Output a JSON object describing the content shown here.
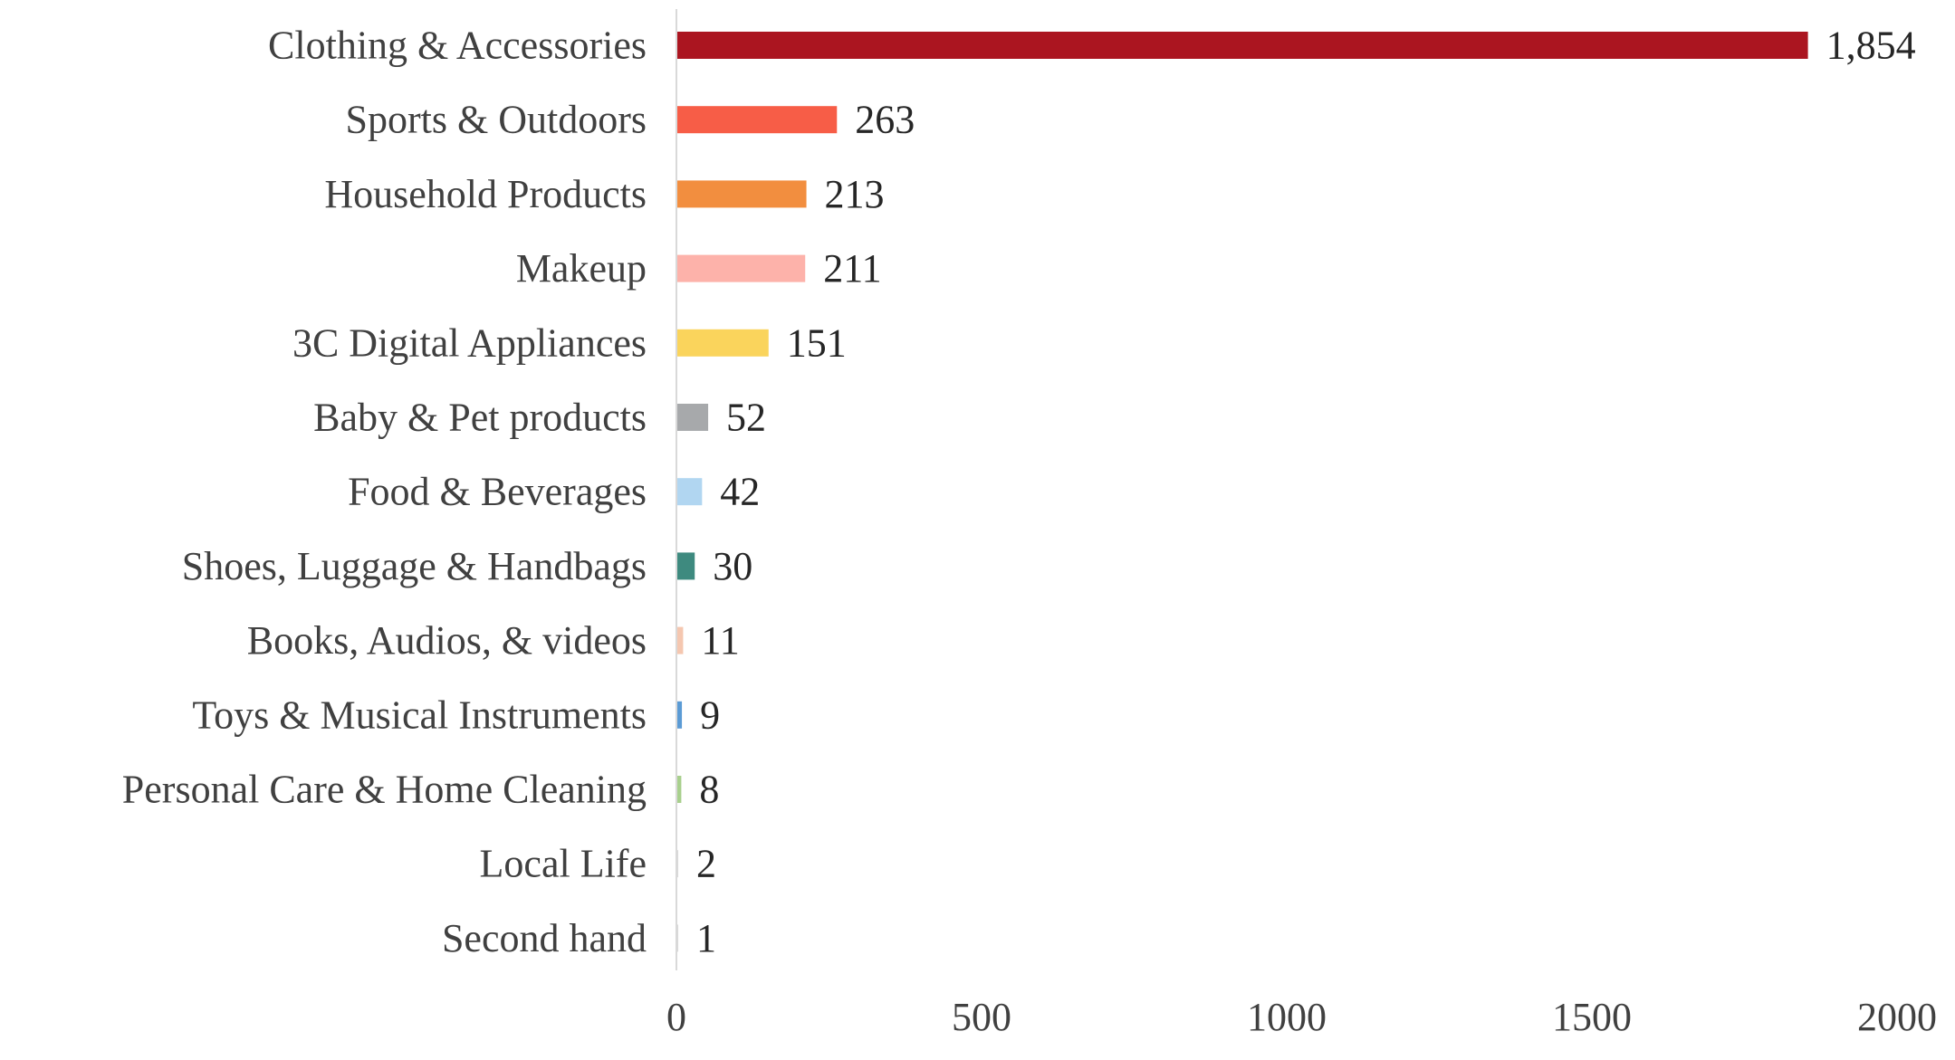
{
  "chart_data": {
    "type": "bar",
    "orientation": "horizontal",
    "title": "",
    "xlabel": "",
    "ylabel": "",
    "xlim": [
      0,
      2000
    ],
    "grid": false,
    "legend": "none",
    "categories": [
      "Clothing & Accessories",
      "Sports & Outdoors",
      "Household Products",
      "Makeup",
      "3C Digital Appliances",
      "Baby & Pet products",
      "Food & Beverages",
      "Shoes, Luggage & Handbags",
      "Books, Audios, & videos",
      "Toys & Musical Instruments",
      "Personal Care & Home Cleaning",
      "Local Life",
      "Second hand"
    ],
    "values": [
      1854,
      263,
      213,
      211,
      151,
      52,
      42,
      30,
      11,
      9,
      8,
      2,
      1
    ],
    "value_labels": [
      "1,854",
      "263",
      "213",
      "211",
      "151",
      "52",
      "42",
      "30",
      "11",
      "9",
      "8",
      "2",
      "1"
    ],
    "bar_colors": [
      "#ab1520",
      "#f75d47",
      "#f28e3f",
      "#fdb2aa",
      "#fad45c",
      "#a7a9ab",
      "#b1d6f1",
      "#3e8a7f",
      "#f5c7b0",
      "#5b9bd5",
      "#a8d08d",
      "#d9d9d9",
      "#d9d9d9"
    ],
    "x_ticks": [
      "0",
      "500",
      "1000",
      "1500",
      "2000"
    ],
    "x_tick_values": [
      0,
      500,
      1000,
      1500,
      2000
    ]
  }
}
